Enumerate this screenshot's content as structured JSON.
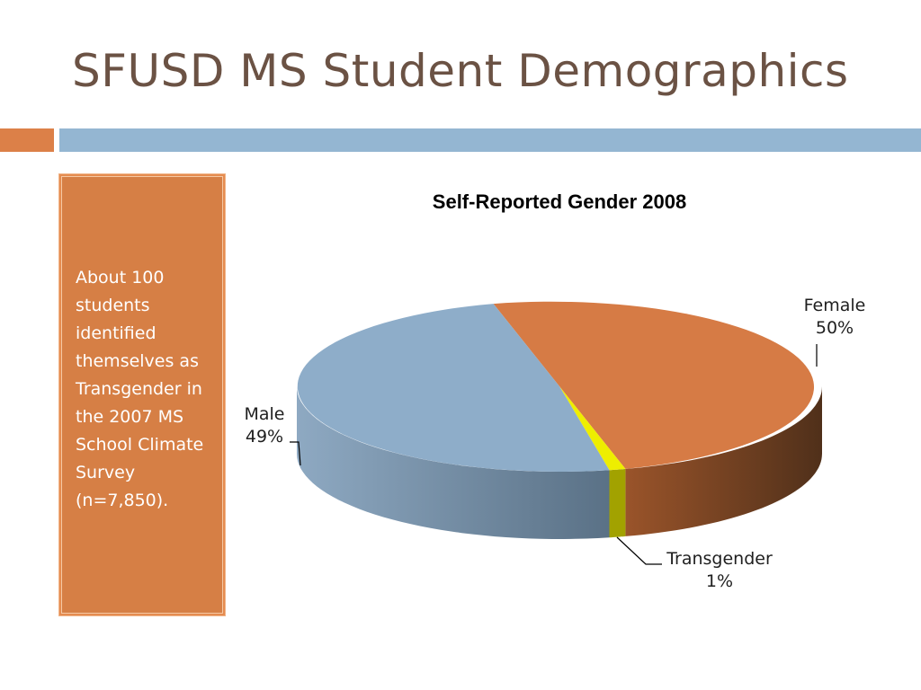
{
  "slide": {
    "title": "SFUSD MS Student Demographics",
    "side_text": "About 100 students identified themselves as Transgender in the 2007 MS School Climate Survey (n=7,850)."
  },
  "colors": {
    "title": "#6b5244",
    "accent_orange": "#dc8048",
    "accent_blue": "#94b6d2",
    "panel": "#d67f45"
  },
  "chart_data": {
    "type": "pie",
    "style": "3d",
    "title": "Self-Reported Gender 2008",
    "categories": [
      "Female",
      "Transgender",
      "Male"
    ],
    "values": [
      50,
      1,
      49
    ],
    "labels": [
      "50%",
      "1%",
      "49%"
    ],
    "colors": [
      "#d67b45",
      "#eeee00",
      "#8eadc9"
    ],
    "side_colors": [
      "#5e3519",
      "#a2a200",
      "#5c7287"
    ]
  }
}
